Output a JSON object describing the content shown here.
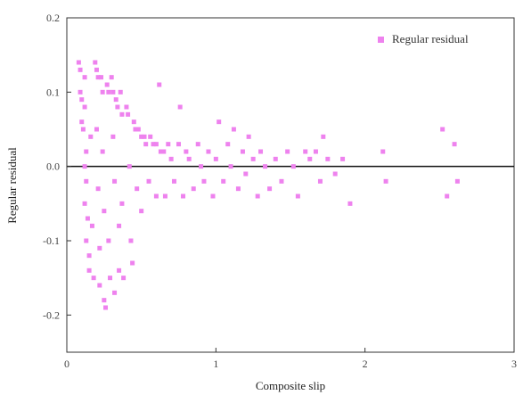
{
  "chart_data": {
    "type": "scatter",
    "xlabel": "Composite slip",
    "ylabel": "Regular residual",
    "xlim": [
      0,
      3
    ],
    "ylim": [
      -0.25,
      0.2
    ],
    "x_ticks": [
      0,
      1,
      2,
      3
    ],
    "y_ticks": [
      -0.2,
      -0.1,
      0.0,
      0.1,
      0.2
    ],
    "x_tick_labels": [
      "0",
      "1",
      "2",
      "3"
    ],
    "y_tick_labels": [
      "-0.2",
      "-0.1",
      "0.0",
      "0.1",
      "0.2"
    ],
    "grid": false,
    "reference_line": 0,
    "legend": {
      "position": "top-right",
      "label": "Regular residual"
    },
    "series": [
      {
        "name": "Regular residual",
        "color": "#ee82ee",
        "marker": "square",
        "points": [
          [
            0.08,
            0.14
          ],
          [
            0.09,
            0.13
          ],
          [
            0.09,
            0.1
          ],
          [
            0.1,
            0.09
          ],
          [
            0.1,
            0.06
          ],
          [
            0.11,
            0.05
          ],
          [
            0.12,
            0.08
          ],
          [
            0.12,
            0.12
          ],
          [
            0.13,
            0.02
          ],
          [
            0.12,
            0.0
          ],
          [
            0.13,
            -0.02
          ],
          [
            0.12,
            -0.05
          ],
          [
            0.14,
            -0.07
          ],
          [
            0.13,
            -0.1
          ],
          [
            0.15,
            -0.12
          ],
          [
            0.15,
            -0.14
          ],
          [
            0.16,
            0.04
          ],
          [
            0.17,
            -0.08
          ],
          [
            0.18,
            -0.15
          ],
          [
            0.19,
            0.14
          ],
          [
            0.2,
            0.13
          ],
          [
            0.21,
            0.12
          ],
          [
            0.2,
            0.05
          ],
          [
            0.21,
            -0.03
          ],
          [
            0.22,
            -0.11
          ],
          [
            0.22,
            -0.16
          ],
          [
            0.23,
            0.12
          ],
          [
            0.24,
            0.1
          ],
          [
            0.24,
            0.02
          ],
          [
            0.25,
            -0.06
          ],
          [
            0.25,
            -0.18
          ],
          [
            0.26,
            -0.19
          ],
          [
            0.27,
            0.11
          ],
          [
            0.28,
            0.1
          ],
          [
            0.28,
            -0.1
          ],
          [
            0.29,
            -0.15
          ],
          [
            0.3,
            0.12
          ],
          [
            0.31,
            0.1
          ],
          [
            0.31,
            0.04
          ],
          [
            0.32,
            -0.02
          ],
          [
            0.32,
            -0.17
          ],
          [
            0.33,
            0.09
          ],
          [
            0.34,
            0.08
          ],
          [
            0.35,
            -0.08
          ],
          [
            0.35,
            -0.14
          ],
          [
            0.36,
            0.1
          ],
          [
            0.37,
            0.07
          ],
          [
            0.37,
            -0.05
          ],
          [
            0.38,
            -0.15
          ],
          [
            0.4,
            0.08
          ],
          [
            0.41,
            0.07
          ],
          [
            0.42,
            0.0
          ],
          [
            0.43,
            -0.1
          ],
          [
            0.44,
            -0.13
          ],
          [
            0.45,
            0.06
          ],
          [
            0.46,
            0.05
          ],
          [
            0.47,
            -0.03
          ],
          [
            0.48,
            0.05
          ],
          [
            0.5,
            0.04
          ],
          [
            0.5,
            -0.06
          ],
          [
            0.52,
            0.04
          ],
          [
            0.53,
            0.03
          ],
          [
            0.55,
            -0.02
          ],
          [
            0.56,
            0.04
          ],
          [
            0.58,
            0.03
          ],
          [
            0.6,
            0.03
          ],
          [
            0.6,
            -0.04
          ],
          [
            0.62,
            0.11
          ],
          [
            0.63,
            0.02
          ],
          [
            0.65,
            0.02
          ],
          [
            0.66,
            -0.04
          ],
          [
            0.68,
            0.03
          ],
          [
            0.7,
            0.01
          ],
          [
            0.72,
            -0.02
          ],
          [
            0.75,
            0.03
          ],
          [
            0.76,
            0.08
          ],
          [
            0.78,
            -0.04
          ],
          [
            0.8,
            0.02
          ],
          [
            0.82,
            0.01
          ],
          [
            0.85,
            -0.03
          ],
          [
            0.88,
            0.03
          ],
          [
            0.9,
            0.0
          ],
          [
            0.92,
            -0.02
          ],
          [
            0.95,
            0.02
          ],
          [
            0.98,
            -0.04
          ],
          [
            1.0,
            0.01
          ],
          [
            1.02,
            0.06
          ],
          [
            1.05,
            -0.02
          ],
          [
            1.08,
            0.03
          ],
          [
            1.1,
            0.0
          ],
          [
            1.12,
            0.05
          ],
          [
            1.15,
            -0.03
          ],
          [
            1.18,
            0.02
          ],
          [
            1.2,
            -0.01
          ],
          [
            1.22,
            0.04
          ],
          [
            1.25,
            0.01
          ],
          [
            1.28,
            -0.04
          ],
          [
            1.3,
            0.02
          ],
          [
            1.33,
            0.0
          ],
          [
            1.36,
            -0.03
          ],
          [
            1.4,
            0.01
          ],
          [
            1.44,
            -0.02
          ],
          [
            1.48,
            0.02
          ],
          [
            1.52,
            0.0
          ],
          [
            1.55,
            -0.04
          ],
          [
            1.6,
            0.02
          ],
          [
            1.63,
            0.01
          ],
          [
            1.67,
            0.02
          ],
          [
            1.7,
            -0.02
          ],
          [
            1.72,
            0.04
          ],
          [
            1.75,
            0.01
          ],
          [
            1.8,
            -0.01
          ],
          [
            1.85,
            0.01
          ],
          [
            1.9,
            -0.05
          ],
          [
            2.12,
            0.02
          ],
          [
            2.14,
            -0.02
          ],
          [
            2.52,
            0.05
          ],
          [
            2.55,
            -0.04
          ],
          [
            2.6,
            0.03
          ],
          [
            2.62,
            -0.02
          ]
        ]
      }
    ]
  }
}
